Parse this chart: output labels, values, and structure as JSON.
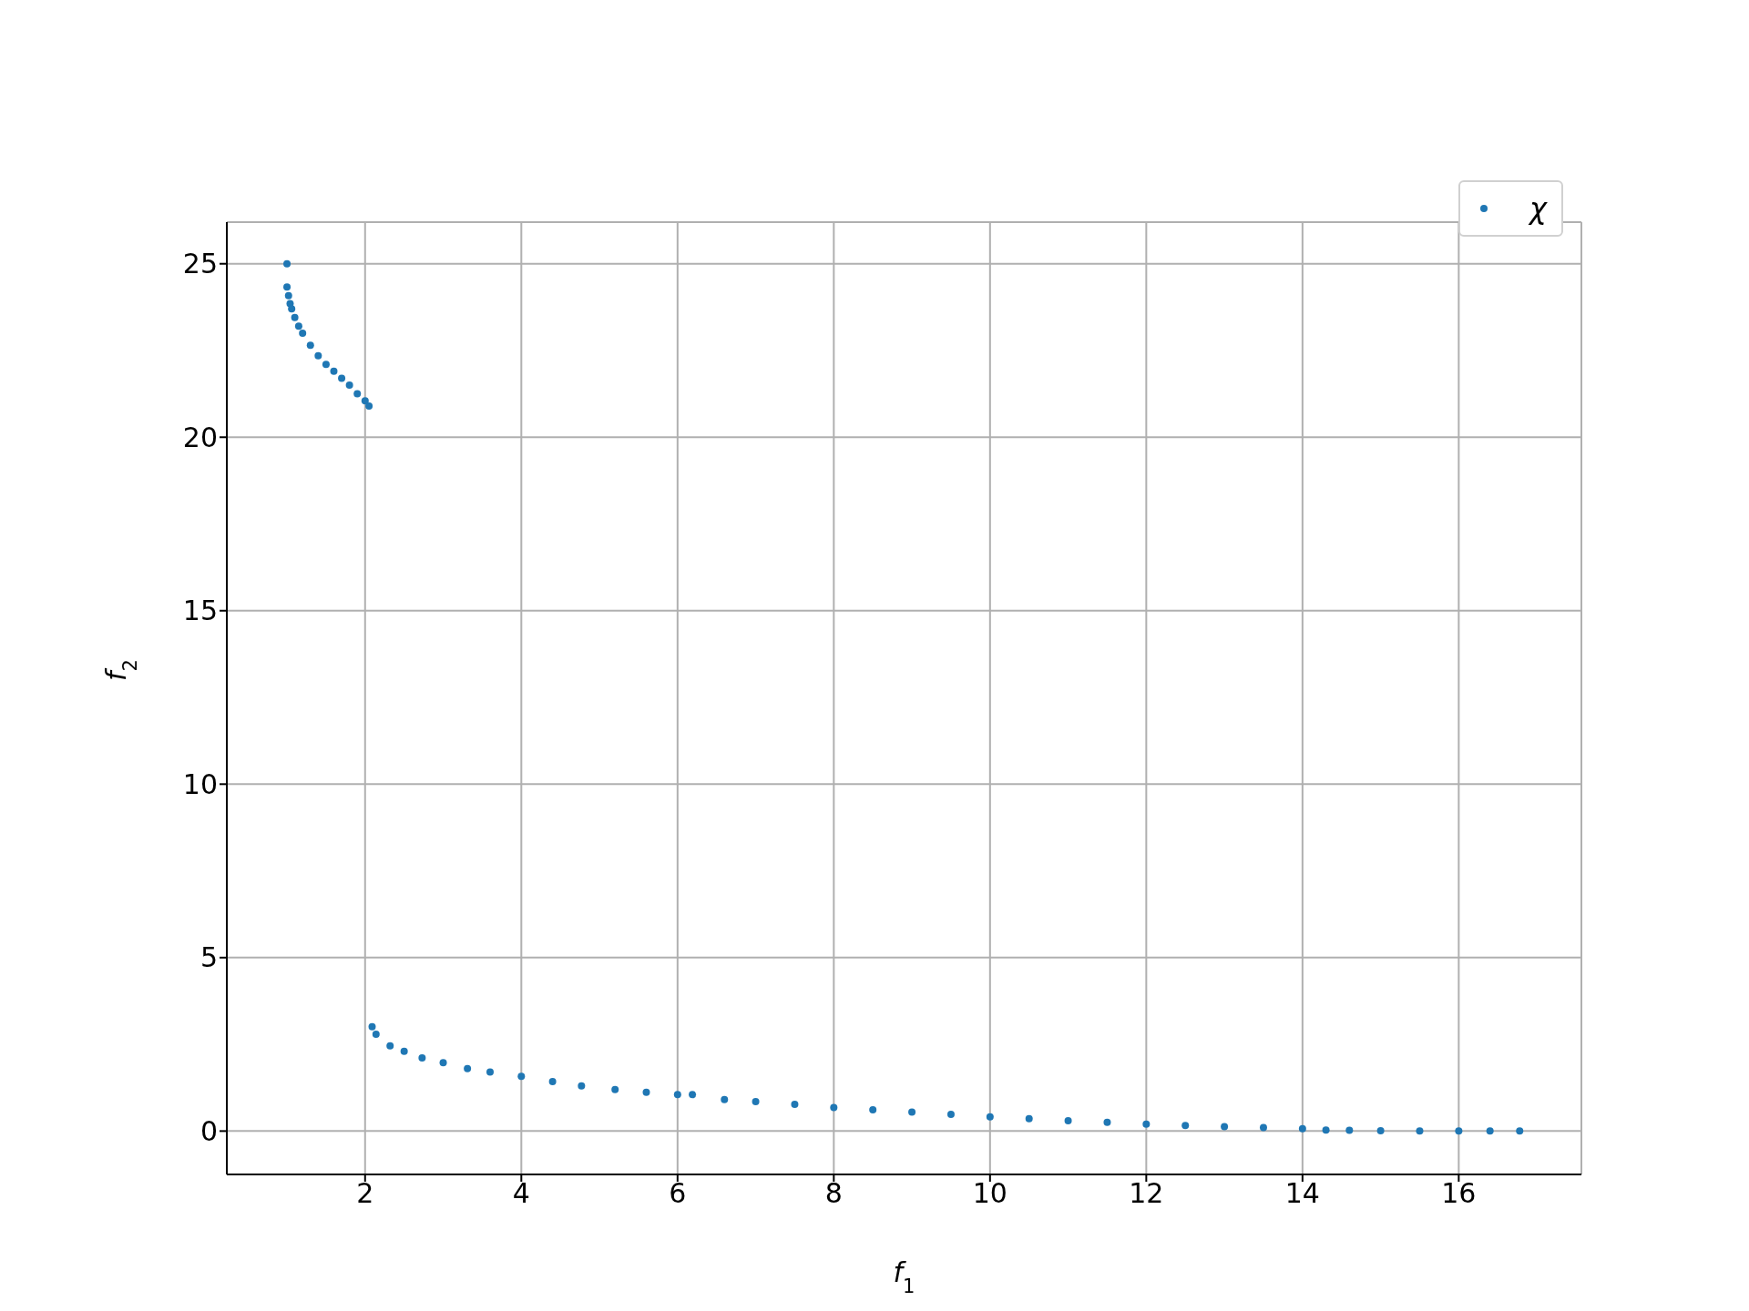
{
  "chart_data": {
    "type": "scatter",
    "xlabel": "f$_{1}$",
    "ylabel": "f$_{2}$",
    "xlim": [
      0.23,
      17.57
    ],
    "ylim": [
      -1.25,
      26.2
    ],
    "xticks": [
      2,
      4,
      6,
      8,
      10,
      12,
      14,
      16
    ],
    "yticks": [
      0,
      5,
      10,
      15,
      20,
      25
    ],
    "grid": true,
    "legend": "top right",
    "marker": "circle",
    "series": [
      {
        "name": "χ",
        "color": "#1f77b4",
        "x": [
          1.0,
          1.0,
          1.02,
          1.04,
          1.06,
          1.1,
          1.15,
          1.2,
          1.3,
          1.4,
          1.5,
          1.6,
          1.7,
          1.8,
          1.9,
          2.0,
          2.05,
          2.09,
          2.14,
          2.32,
          2.5,
          2.73,
          3.0,
          3.31,
          3.6,
          4.0,
          4.4,
          4.77,
          5.2,
          5.6,
          6.0,
          6.19,
          6.6,
          7.0,
          7.5,
          8.0,
          8.5,
          9.0,
          9.5,
          10.0,
          10.5,
          11.0,
          11.5,
          12.0,
          12.5,
          13.0,
          13.5,
          14.0,
          14.3,
          14.6,
          15.0,
          15.5,
          16.0,
          16.4,
          16.78
        ],
        "values": [
          25.0,
          24.33,
          24.08,
          23.85,
          23.7,
          23.45,
          23.2,
          23.0,
          22.65,
          22.35,
          22.1,
          21.9,
          21.7,
          21.5,
          21.25,
          21.05,
          20.9,
          3.01,
          2.79,
          2.46,
          2.3,
          2.11,
          1.97,
          1.8,
          1.7,
          1.58,
          1.43,
          1.3,
          1.2,
          1.12,
          1.05,
          1.05,
          0.91,
          0.85,
          0.77,
          0.68,
          0.61,
          0.55,
          0.48,
          0.41,
          0.36,
          0.3,
          0.25,
          0.2,
          0.16,
          0.13,
          0.1,
          0.07,
          0.03,
          0.02,
          0.01,
          0.0,
          0.0,
          0.0,
          0.0
        ]
      }
    ]
  }
}
